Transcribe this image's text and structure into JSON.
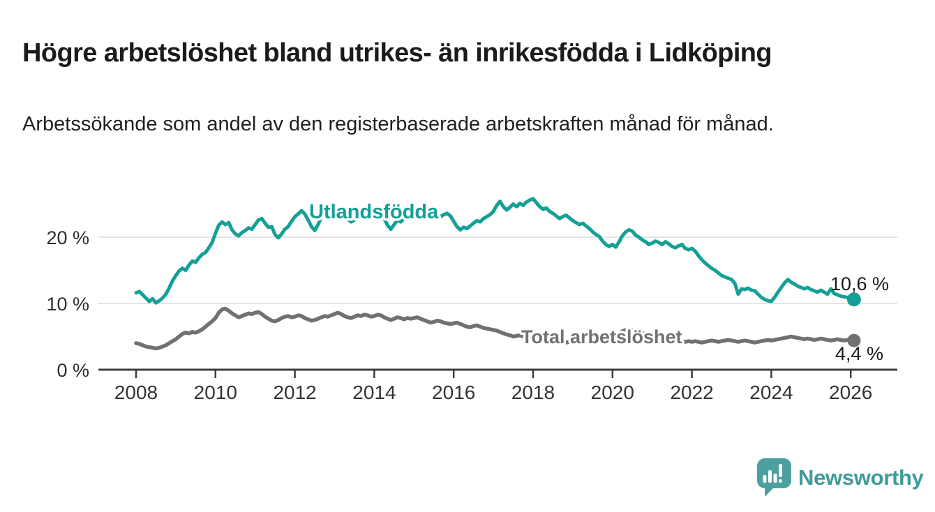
{
  "header": {
    "title": "Högre arbetslöshet bland utrikes- än inrikesfödda i Lidköping",
    "subtitle": "Arbetssökande som andel av den registerbaserade arbetskraften månad för månad."
  },
  "branding": {
    "name": "Newsworthy",
    "icon": "newsworthy-speech-bubble-chart-icon",
    "icon_color": "#4CA1A0",
    "text_color": "#3E9B99"
  },
  "chart_data": {
    "type": "line",
    "title": "Högre arbetslöshet bland utrikes- än inrikesfödda i Lidköping",
    "unit": "%",
    "x_start_year": 2008,
    "x_interval": "monthly",
    "x_end": "2026-02",
    "ylim": [
      0,
      27.5
    ],
    "grid": "horizontal",
    "legend": "inline-labels",
    "axis_color": "#3D3D3D",
    "grid_color": "#DCDCDC",
    "yticks": [
      {
        "value": 0,
        "label": "0 %"
      },
      {
        "value": 10,
        "label": "10 %"
      },
      {
        "value": 20,
        "label": "20 %"
      }
    ],
    "xticks": [
      2008,
      2010,
      2012,
      2014,
      2016,
      2018,
      2020,
      2022,
      2024,
      2026
    ],
    "series": [
      {
        "name": "Utlandsfödda",
        "slug": "utlandsfodda",
        "color": "#14A096",
        "end_label": "10,6 %",
        "end_value": 10.6,
        "values": [
          11.6,
          11.8,
          11.3,
          10.8,
          10.3,
          10.7,
          10.1,
          10.4,
          10.8,
          11.4,
          12.3,
          13.4,
          14.2,
          14.9,
          15.3,
          15.0,
          15.8,
          16.4,
          16.2,
          16.9,
          17.4,
          17.7,
          18.4,
          19.2,
          20.6,
          21.8,
          22.3,
          21.9,
          22.2,
          21.1,
          20.5,
          20.2,
          20.7,
          21.0,
          21.4,
          21.2,
          21.9,
          22.6,
          22.8,
          22.1,
          21.5,
          21.6,
          20.4,
          19.9,
          20.5,
          21.2,
          21.6,
          22.4,
          23.1,
          23.5,
          24.0,
          23.5,
          22.6,
          21.6,
          21.0,
          21.9,
          23.0,
          23.9,
          23.5,
          23.8,
          24.2,
          24.3,
          23.7,
          23.2,
          22.7,
          22.3,
          22.6,
          23.1,
          22.9,
          23.2,
          23.4,
          23.1,
          23.4,
          23.9,
          23.5,
          22.8,
          21.8,
          21.2,
          21.9,
          22.6,
          22.3,
          22.8,
          23.1,
          23.3,
          23.7,
          24.0,
          23.6,
          23.1,
          22.8,
          23.2,
          22.9,
          23.3,
          23.1,
          23.4,
          23.6,
          23.2,
          22.4,
          21.6,
          21.1,
          21.5,
          21.3,
          21.7,
          22.1,
          22.5,
          22.3,
          22.8,
          23.1,
          23.4,
          23.9,
          24.8,
          25.4,
          24.6,
          24.1,
          24.5,
          25.0,
          24.6,
          25.1,
          24.8,
          25.3,
          25.6,
          25.8,
          25.2,
          24.6,
          24.2,
          24.4,
          23.9,
          23.6,
          23.2,
          22.8,
          23.1,
          23.3,
          22.9,
          22.5,
          22.2,
          21.9,
          22.1,
          21.7,
          21.3,
          20.8,
          20.4,
          20.1,
          19.4,
          18.9,
          18.6,
          18.9,
          18.5,
          19.3,
          20.2,
          20.8,
          21.1,
          20.9,
          20.3,
          20.0,
          19.6,
          19.3,
          18.9,
          19.1,
          19.4,
          19.2,
          18.9,
          19.3,
          19.0,
          18.6,
          18.4,
          18.7,
          18.9,
          18.3,
          18.1,
          18.3,
          17.9,
          17.2,
          16.6,
          16.1,
          15.7,
          15.3,
          15.0,
          14.6,
          14.2,
          14.0,
          13.8,
          13.6,
          13.0,
          11.4,
          12.2,
          12.1,
          12.3,
          12.0,
          11.9,
          11.4,
          10.9,
          10.6,
          10.4,
          10.3,
          10.9,
          11.7,
          12.4,
          13.1,
          13.6,
          13.2,
          12.9,
          12.6,
          12.4,
          12.2,
          12.4,
          12.1,
          11.9,
          11.7,
          12.0,
          11.7,
          11.4,
          12.2,
          11.5,
          11.3,
          11.1,
          11.0,
          10.9,
          11.1,
          10.6
        ]
      },
      {
        "name": "Total arbetslöshet",
        "slug": "total-arbetsloshet",
        "color": "#717173",
        "end_label": "4,4 %",
        "end_value": 4.4,
        "values": [
          4.0,
          3.9,
          3.7,
          3.5,
          3.4,
          3.3,
          3.2,
          3.3,
          3.5,
          3.7,
          4.0,
          4.3,
          4.6,
          5.0,
          5.4,
          5.6,
          5.5,
          5.7,
          5.6,
          5.8,
          6.1,
          6.5,
          6.9,
          7.3,
          7.8,
          8.6,
          9.1,
          9.2,
          8.9,
          8.5,
          8.2,
          7.9,
          8.1,
          8.3,
          8.5,
          8.4,
          8.6,
          8.7,
          8.4,
          8.0,
          7.7,
          7.4,
          7.3,
          7.5,
          7.8,
          8.0,
          8.1,
          7.9,
          8.0,
          8.2,
          8.1,
          7.8,
          7.6,
          7.4,
          7.5,
          7.7,
          7.9,
          8.1,
          8.0,
          8.2,
          8.4,
          8.6,
          8.4,
          8.1,
          7.9,
          7.8,
          8.0,
          8.2,
          8.1,
          8.3,
          8.2,
          8.0,
          8.1,
          8.3,
          8.2,
          7.9,
          7.7,
          7.5,
          7.7,
          7.9,
          7.8,
          7.6,
          7.8,
          7.7,
          7.8,
          7.9,
          7.7,
          7.5,
          7.3,
          7.1,
          7.2,
          7.4,
          7.3,
          7.1,
          7.0,
          6.9,
          7.0,
          7.1,
          6.9,
          6.7,
          6.5,
          6.4,
          6.6,
          6.7,
          6.5,
          6.3,
          6.2,
          6.1,
          6.0,
          5.9,
          5.7,
          5.5,
          5.3,
          5.2,
          5.0,
          5.1,
          5.2,
          5.0,
          4.9,
          4.8,
          4.7,
          4.6,
          4.5,
          4.4,
          4.3,
          4.2,
          4.3,
          4.4,
          4.3,
          4.2,
          4.1,
          4.2,
          4.3,
          4.4,
          4.3,
          4.2,
          4.3,
          4.4,
          4.5,
          4.4,
          4.5,
          4.6,
          4.7,
          4.8,
          4.9,
          5.0,
          5.4,
          5.8,
          6.0,
          6.1,
          6.0,
          5.9,
          5.7,
          5.5,
          5.4,
          5.3,
          5.2,
          5.1,
          5.0,
          4.9,
          4.8,
          4.7,
          4.6,
          4.5,
          4.4,
          4.3,
          4.2,
          4.3,
          4.2,
          4.3,
          4.2,
          4.1,
          4.2,
          4.3,
          4.4,
          4.3,
          4.2,
          4.3,
          4.4,
          4.5,
          4.4,
          4.3,
          4.2,
          4.3,
          4.4,
          4.3,
          4.2,
          4.1,
          4.2,
          4.3,
          4.4,
          4.5,
          4.4,
          4.5,
          4.6,
          4.7,
          4.8,
          4.9,
          5.0,
          4.9,
          4.8,
          4.7,
          4.6,
          4.7,
          4.6,
          4.5,
          4.6,
          4.7,
          4.6,
          4.5,
          4.4,
          4.5,
          4.6,
          4.5,
          4.4,
          4.5,
          4.4,
          4.4
        ]
      }
    ]
  }
}
